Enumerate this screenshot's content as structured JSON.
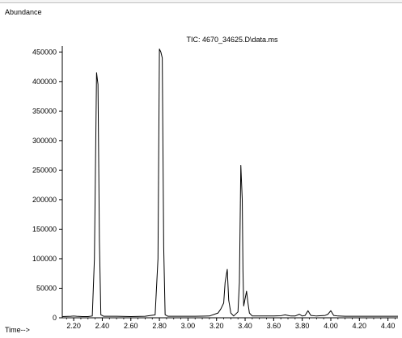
{
  "chart_data": {
    "type": "line",
    "title": "TIC: 4670_34625.D\\data.ms",
    "ylabel": "Abundance",
    "xlabel": "Time-->",
    "xlim": [
      2.12,
      4.47
    ],
    "ylim": [
      0,
      460000
    ],
    "x_ticks": [
      2.2,
      2.4,
      2.6,
      2.8,
      3.0,
      3.2,
      3.4,
      3.6,
      3.8,
      4.0,
      4.2,
      4.4
    ],
    "x_tick_labels": [
      "2.20",
      "2.40",
      "2.60",
      "2.80",
      "3.00",
      "3.20",
      "3.40",
      "3.60",
      "3.80",
      "4.00",
      "4.20",
      "4.40"
    ],
    "y_ticks": [
      0,
      50000,
      100000,
      150000,
      200000,
      250000,
      300000,
      350000,
      400000,
      450000
    ],
    "y_tick_labels": [
      "0",
      "50000",
      "100000",
      "150000",
      "200000",
      "250000",
      "300000",
      "350000",
      "400000",
      "450000"
    ],
    "grid": false,
    "series": [
      {
        "name": "",
        "color": "#000000",
        "x": [
          2.12,
          2.18,
          2.2,
          2.22,
          2.26,
          2.3,
          2.33,
          2.345,
          2.36,
          2.37,
          2.38,
          2.39,
          2.41,
          2.5,
          2.6,
          2.7,
          2.77,
          2.79,
          2.8,
          2.81,
          2.82,
          2.83,
          2.84,
          2.86,
          2.95,
          3.05,
          3.15,
          3.21,
          3.23,
          3.25,
          3.26,
          3.275,
          3.285,
          3.3,
          3.32,
          3.35,
          3.36,
          3.37,
          3.38,
          3.385,
          3.39,
          3.41,
          3.42,
          3.43,
          3.45,
          3.5,
          3.55,
          3.6,
          3.65,
          3.68,
          3.7,
          3.72,
          3.75,
          3.78,
          3.8,
          3.82,
          3.84,
          3.86,
          3.9,
          3.96,
          3.98,
          4.0,
          4.02,
          4.05,
          4.1,
          4.2,
          4.3,
          4.4,
          4.47
        ],
        "y": [
          2000,
          2500,
          3000,
          2500,
          2000,
          2000,
          3000,
          100000,
          415000,
          395000,
          130000,
          5000,
          2500,
          2500,
          2000,
          2500,
          5000,
          100000,
          455000,
          450000,
          440000,
          120000,
          5000,
          2500,
          2500,
          2500,
          3000,
          8000,
          15000,
          25000,
          60000,
          82000,
          30000,
          8000,
          3000,
          10000,
          60000,
          258000,
          200000,
          80000,
          20000,
          45000,
          25000,
          8000,
          3000,
          3000,
          3000,
          3000,
          3500,
          5000,
          4000,
          3000,
          3000,
          6000,
          3000,
          4000,
          12000,
          4000,
          3000,
          4000,
          6000,
          12000,
          4000,
          3000,
          2500,
          2500,
          2500,
          2500,
          2500
        ]
      }
    ]
  }
}
